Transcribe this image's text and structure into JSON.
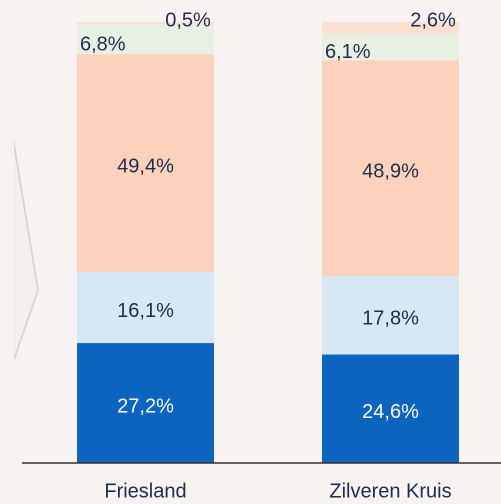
{
  "chart_data": {
    "type": "stacked_bar",
    "categories": [
      "Friesland",
      "Zilveren Kruis"
    ],
    "ylim": [
      0,
      100
    ],
    "series": [
      {
        "color": "#0b64bf",
        "values": [
          27.2,
          24.6
        ],
        "value_labels": [
          "27,2%",
          "24,6%"
        ]
      },
      {
        "color": "#d8e7f4",
        "values": [
          16.1,
          17.8
        ],
        "value_labels": [
          "16,1%",
          "17,8%"
        ]
      },
      {
        "color": "#fcd2bd",
        "values": [
          49.4,
          48.9
        ],
        "value_labels": [
          "49,4%",
          "48,9%"
        ]
      },
      {
        "color": "#e8efe3",
        "values": [
          6.8,
          6.1
        ],
        "value_labels": [
          "6,8%",
          "6,1%"
        ]
      },
      {
        "color": "#fde0d2",
        "values": [
          0.5,
          2.6
        ],
        "value_labels": [
          "0,5%",
          "2,6%"
        ]
      }
    ]
  }
}
